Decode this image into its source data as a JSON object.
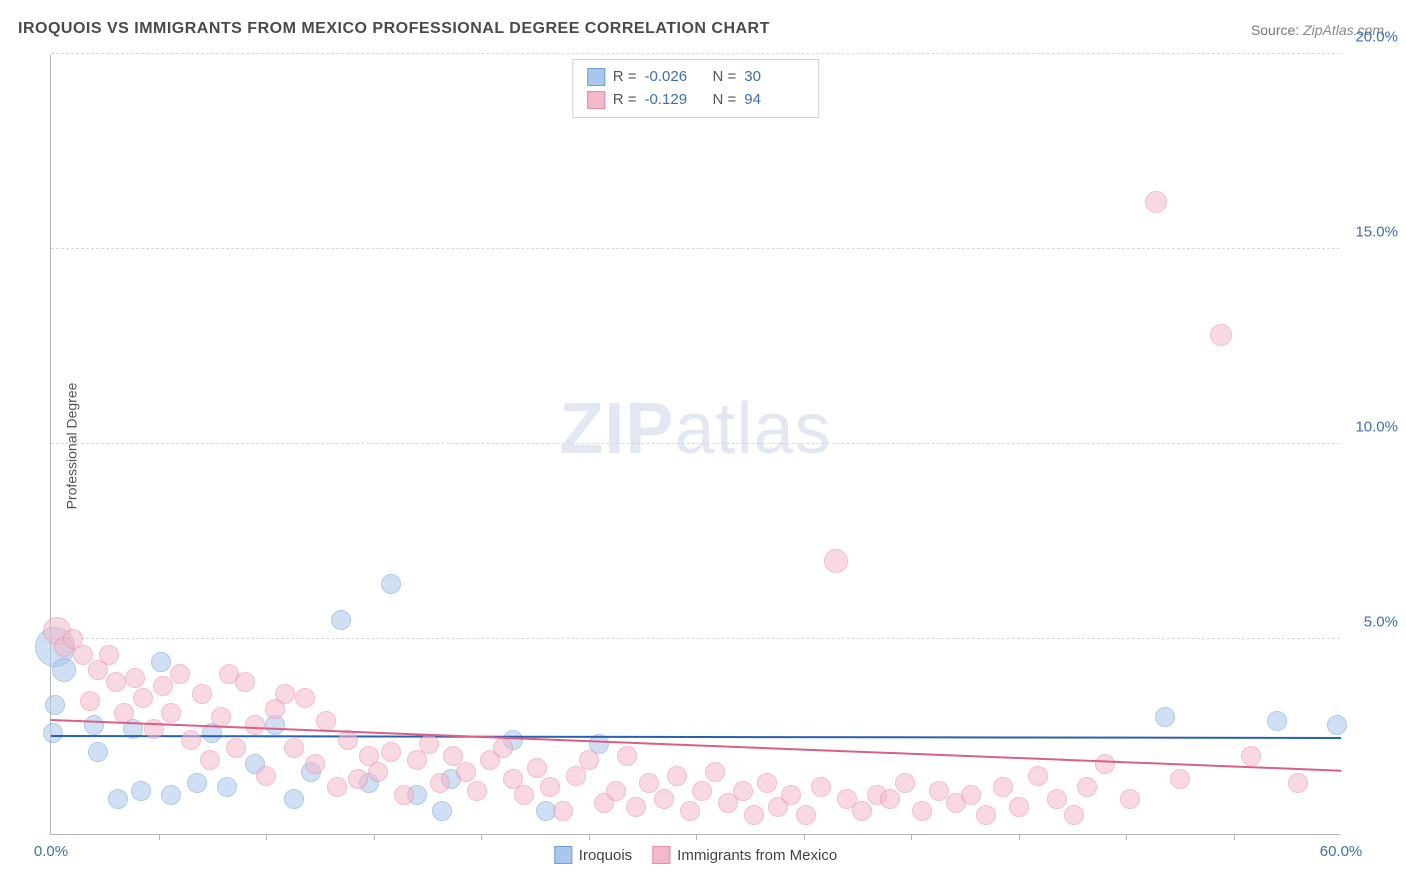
{
  "title": "IROQUOIS VS IMMIGRANTS FROM MEXICO PROFESSIONAL DEGREE CORRELATION CHART",
  "source_label": "Source:",
  "source_value": "ZipAtlas.com",
  "ylabel": "Professional Degree",
  "watermark_a": "ZIP",
  "watermark_b": "atlas",
  "chart": {
    "type": "scatter",
    "xlim": [
      0,
      60
    ],
    "ylim": [
      0,
      20
    ],
    "x_ticks": [
      0,
      60
    ],
    "x_tick_labels": [
      "0.0%",
      "60.0%"
    ],
    "x_minor_ticks": [
      5,
      10,
      15,
      20,
      25,
      30,
      35,
      40,
      45,
      50,
      55
    ],
    "y_ticks": [
      5,
      10,
      15,
      20
    ],
    "y_tick_labels": [
      "5.0%",
      "10.0%",
      "15.0%",
      "20.0%"
    ],
    "background_color": "#ffffff",
    "grid_color": "#d8d8d8",
    "axis_color": "#b5b5b5",
    "tick_label_color": "#3b6fb6",
    "series": [
      {
        "name": "Iroquois",
        "fill": "#a9c7ec",
        "stroke": "#6fa0d8",
        "fill_opacity": 0.55,
        "trend_color": "#2b5fb0",
        "trend": {
          "y_at_x0": 2.5,
          "y_at_xmax": 2.45
        },
        "R": "-0.026",
        "N": "30",
        "default_r": 10,
        "points": [
          {
            "x": 0.2,
            "y": 4.8,
            "r": 20
          },
          {
            "x": 0.2,
            "y": 3.3
          },
          {
            "x": 0.1,
            "y": 2.6
          },
          {
            "x": 0.6,
            "y": 4.2,
            "r": 12
          },
          {
            "x": 2.0,
            "y": 2.8
          },
          {
            "x": 2.2,
            "y": 2.1
          },
          {
            "x": 3.1,
            "y": 0.9
          },
          {
            "x": 3.8,
            "y": 2.7
          },
          {
            "x": 4.2,
            "y": 1.1
          },
          {
            "x": 5.1,
            "y": 4.4
          },
          {
            "x": 5.6,
            "y": 1.0
          },
          {
            "x": 6.8,
            "y": 1.3
          },
          {
            "x": 7.5,
            "y": 2.6
          },
          {
            "x": 8.2,
            "y": 1.2
          },
          {
            "x": 9.5,
            "y": 1.8
          },
          {
            "x": 10.4,
            "y": 2.8
          },
          {
            "x": 11.3,
            "y": 0.9
          },
          {
            "x": 12.1,
            "y": 1.6
          },
          {
            "x": 13.5,
            "y": 5.5
          },
          {
            "x": 14.8,
            "y": 1.3
          },
          {
            "x": 15.8,
            "y": 6.4
          },
          {
            "x": 17.0,
            "y": 1.0
          },
          {
            "x": 18.2,
            "y": 0.6
          },
          {
            "x": 18.6,
            "y": 1.4
          },
          {
            "x": 21.5,
            "y": 2.4
          },
          {
            "x": 23.0,
            "y": 0.6
          },
          {
            "x": 25.5,
            "y": 2.3
          },
          {
            "x": 51.8,
            "y": 3.0
          },
          {
            "x": 57.0,
            "y": 2.9
          },
          {
            "x": 59.8,
            "y": 2.8
          }
        ]
      },
      {
        "name": "Immigrants from Mexico",
        "fill": "#f4b9c9",
        "stroke": "#e88ba5",
        "fill_opacity": 0.55,
        "trend_color": "#d85f86",
        "trend": {
          "y_at_x0": 2.9,
          "y_at_xmax": 1.6
        },
        "R": "-0.129",
        "N": "94",
        "default_r": 10,
        "points": [
          {
            "x": 0.3,
            "y": 5.2,
            "r": 14
          },
          {
            "x": 0.6,
            "y": 4.8
          },
          {
            "x": 1.0,
            "y": 5.0
          },
          {
            "x": 1.5,
            "y": 4.6
          },
          {
            "x": 1.8,
            "y": 3.4
          },
          {
            "x": 2.2,
            "y": 4.2
          },
          {
            "x": 2.7,
            "y": 4.6
          },
          {
            "x": 3.0,
            "y": 3.9
          },
          {
            "x": 3.4,
            "y": 3.1
          },
          {
            "x": 3.9,
            "y": 4.0
          },
          {
            "x": 4.3,
            "y": 3.5
          },
          {
            "x": 4.8,
            "y": 2.7
          },
          {
            "x": 5.2,
            "y": 3.8
          },
          {
            "x": 5.6,
            "y": 3.1
          },
          {
            "x": 6.0,
            "y": 4.1
          },
          {
            "x": 6.5,
            "y": 2.4
          },
          {
            "x": 7.0,
            "y": 3.6
          },
          {
            "x": 7.4,
            "y": 1.9
          },
          {
            "x": 7.9,
            "y": 3.0
          },
          {
            "x": 8.3,
            "y": 4.1
          },
          {
            "x": 8.6,
            "y": 2.2
          },
          {
            "x": 9.0,
            "y": 3.9
          },
          {
            "x": 9.5,
            "y": 2.8
          },
          {
            "x": 10.0,
            "y": 1.5
          },
          {
            "x": 10.4,
            "y": 3.2
          },
          {
            "x": 10.9,
            "y": 3.6
          },
          {
            "x": 11.3,
            "y": 2.2
          },
          {
            "x": 11.8,
            "y": 3.5
          },
          {
            "x": 12.3,
            "y": 1.8
          },
          {
            "x": 12.8,
            "y": 2.9
          },
          {
            "x": 13.3,
            "y": 1.2
          },
          {
            "x": 13.8,
            "y": 2.4
          },
          {
            "x": 14.3,
            "y": 1.4
          },
          {
            "x": 14.8,
            "y": 2.0
          },
          {
            "x": 15.2,
            "y": 1.6
          },
          {
            "x": 15.8,
            "y": 2.1
          },
          {
            "x": 16.4,
            "y": 1.0
          },
          {
            "x": 17.0,
            "y": 1.9
          },
          {
            "x": 17.6,
            "y": 2.3
          },
          {
            "x": 18.1,
            "y": 1.3
          },
          {
            "x": 18.7,
            "y": 2.0
          },
          {
            "x": 19.3,
            "y": 1.6
          },
          {
            "x": 19.8,
            "y": 1.1
          },
          {
            "x": 20.4,
            "y": 1.9
          },
          {
            "x": 21.0,
            "y": 2.2
          },
          {
            "x": 21.5,
            "y": 1.4
          },
          {
            "x": 22.0,
            "y": 1.0
          },
          {
            "x": 22.6,
            "y": 1.7
          },
          {
            "x": 23.2,
            "y": 1.2
          },
          {
            "x": 23.8,
            "y": 0.6
          },
          {
            "x": 24.4,
            "y": 1.5
          },
          {
            "x": 25.0,
            "y": 1.9
          },
          {
            "x": 25.7,
            "y": 0.8
          },
          {
            "x": 26.3,
            "y": 1.1
          },
          {
            "x": 26.8,
            "y": 2.0
          },
          {
            "x": 27.2,
            "y": 0.7
          },
          {
            "x": 27.8,
            "y": 1.3
          },
          {
            "x": 28.5,
            "y": 0.9
          },
          {
            "x": 29.1,
            "y": 1.5
          },
          {
            "x": 29.7,
            "y": 0.6
          },
          {
            "x": 30.3,
            "y": 1.1
          },
          {
            "x": 30.9,
            "y": 1.6
          },
          {
            "x": 31.5,
            "y": 0.8
          },
          {
            "x": 32.2,
            "y": 1.1
          },
          {
            "x": 32.7,
            "y": 0.5
          },
          {
            "x": 33.3,
            "y": 1.3
          },
          {
            "x": 33.8,
            "y": 0.7
          },
          {
            "x": 34.4,
            "y": 1.0
          },
          {
            "x": 35.1,
            "y": 0.5
          },
          {
            "x": 35.8,
            "y": 1.2
          },
          {
            "x": 36.5,
            "y": 7.0,
            "r": 12
          },
          {
            "x": 37.0,
            "y": 0.9
          },
          {
            "x": 37.7,
            "y": 0.6
          },
          {
            "x": 38.4,
            "y": 1.0
          },
          {
            "x": 39.0,
            "y": 0.9
          },
          {
            "x": 39.7,
            "y": 1.3
          },
          {
            "x": 40.5,
            "y": 0.6
          },
          {
            "x": 41.3,
            "y": 1.1
          },
          {
            "x": 42.1,
            "y": 0.8
          },
          {
            "x": 42.8,
            "y": 1.0
          },
          {
            "x": 43.5,
            "y": 0.5
          },
          {
            "x": 44.3,
            "y": 1.2
          },
          {
            "x": 45.0,
            "y": 0.7
          },
          {
            "x": 45.9,
            "y": 1.5
          },
          {
            "x": 46.8,
            "y": 0.9
          },
          {
            "x": 47.6,
            "y": 0.5
          },
          {
            "x": 48.2,
            "y": 1.2
          },
          {
            "x": 49.0,
            "y": 1.8
          },
          {
            "x": 50.2,
            "y": 0.9
          },
          {
            "x": 51.4,
            "y": 16.2,
            "r": 11
          },
          {
            "x": 52.5,
            "y": 1.4
          },
          {
            "x": 54.4,
            "y": 12.8,
            "r": 11
          },
          {
            "x": 55.8,
            "y": 2.0
          },
          {
            "x": 58.0,
            "y": 1.3
          }
        ]
      }
    ]
  },
  "legend_top": {
    "R_label": "R =",
    "N_label": "N ="
  },
  "legend_bottom": [
    {
      "label": "Iroquois",
      "fill": "#a9c7ec",
      "stroke": "#6fa0d8"
    },
    {
      "label": "Immigrants from Mexico",
      "fill": "#f4b9c9",
      "stroke": "#e88ba5"
    }
  ]
}
